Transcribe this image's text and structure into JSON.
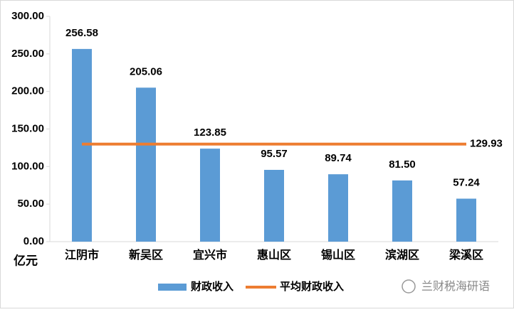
{
  "chart_data": {
    "type": "bar",
    "y_unit": "亿元",
    "categories": [
      "江阴市",
      "新吴区",
      "宜兴市",
      "惠山区",
      "锡山区",
      "滨湖区",
      "梁溪区"
    ],
    "series": [
      {
        "name": "财政收入",
        "color": "#5b9bd5",
        "values": [
          256.58,
          205.06,
          123.85,
          95.57,
          89.74,
          81.5,
          57.24
        ],
        "value_labels": [
          "256.58",
          "205.06",
          "123.85",
          "95.57",
          "89.74",
          "81.50",
          "57.24"
        ]
      }
    ],
    "average": {
      "name": "平均财政收入",
      "color": "#ed7d31",
      "value": 129.93
    },
    "ylim": [
      0,
      300
    ],
    "yticks": [
      {
        "value": 0,
        "label": "0.00"
      },
      {
        "value": 50,
        "label": "50.00"
      },
      {
        "value": 100,
        "label": "100.00"
      },
      {
        "value": 150,
        "label": "150.00"
      },
      {
        "value": 200,
        "label": "200.00"
      },
      {
        "value": 250,
        "label": "250.00"
      },
      {
        "value": 300,
        "label": "300.00"
      }
    ],
    "grid": false,
    "legend": "bottom",
    "watermark": "兰财税海研语"
  }
}
